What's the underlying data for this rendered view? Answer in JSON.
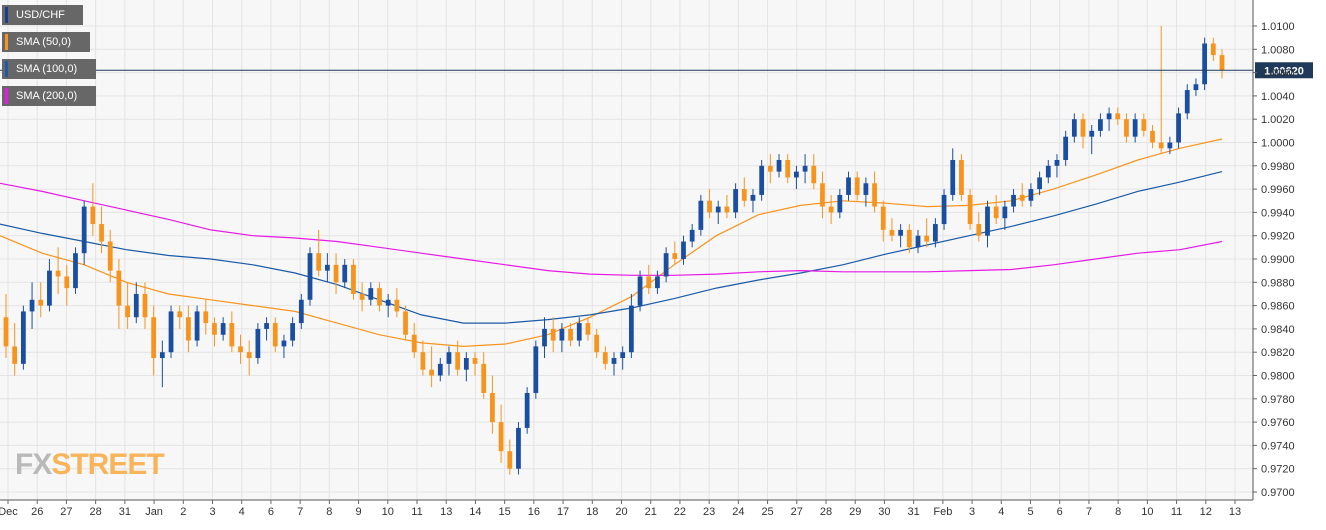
{
  "legend": [
    {
      "label": "USD/CHF",
      "color": "#1a3d8c"
    },
    {
      "label": "SMA (50,0)",
      "color": "#f7941d"
    },
    {
      "label": "SMA (100,0)",
      "color": "#1a5aa8"
    },
    {
      "label": "SMA (200,0)",
      "color": "#e619e6"
    }
  ],
  "watermark": {
    "fx": "FX",
    "street": "STREET"
  },
  "colors": {
    "up_candle": "#1a4ea0",
    "down_candle": "#f7941d",
    "sma50": "#f7941d",
    "sma100": "#1a5aa8",
    "sma200": "#e619e6",
    "grid": "#e4e4e4",
    "price_line": "#1f3a5a",
    "price_label_bg": "#1f3a5a"
  },
  "chart_data": {
    "type": "candlestick",
    "title": "",
    "symbol": "USD/CHF",
    "grid": true,
    "y_axis_side": "right",
    "ylim": [
      0.97,
      1.01
    ],
    "yticks": [
      "1.0100",
      "1.0080",
      "1.0060",
      "1.0040",
      "1.0020",
      "1.0000",
      "0.9980",
      "0.9960",
      "0.9940",
      "0.9920",
      "0.9900",
      "0.9880",
      "0.9860",
      "0.9840",
      "0.9820",
      "0.9800",
      "0.9780",
      "0.9760",
      "0.9740",
      "0.9720",
      "0.9700"
    ],
    "current_price": 1.0062,
    "current_price_label": "1.00620",
    "x_labels": [
      "Dec",
      "26",
      "27",
      "28",
      "31",
      "Jan",
      "2",
      "3",
      "4",
      "6",
      "7",
      "8",
      "9",
      "10",
      "11",
      "13",
      "14",
      "15",
      "16",
      "17",
      "18",
      "20",
      "21",
      "22",
      "23",
      "24",
      "25",
      "27",
      "28",
      "29",
      "30",
      "31",
      "Feb",
      "3",
      "4",
      "5",
      "6",
      "7",
      "8",
      "10",
      "11",
      "12",
      "13"
    ],
    "candles_ohlc": [
      [
        0.985,
        0.987,
        0.9815,
        0.9825
      ],
      [
        0.9825,
        0.9845,
        0.98,
        0.981
      ],
      [
        0.981,
        0.986,
        0.9805,
        0.9855
      ],
      [
        0.9855,
        0.988,
        0.984,
        0.9865
      ],
      [
        0.9865,
        0.988,
        0.985,
        0.986
      ],
      [
        0.986,
        0.99,
        0.9855,
        0.989
      ],
      [
        0.989,
        0.991,
        0.987,
        0.9885
      ],
      [
        0.9885,
        0.9895,
        0.986,
        0.9875
      ],
      [
        0.9875,
        0.991,
        0.987,
        0.9905
      ],
      [
        0.9905,
        0.995,
        0.9895,
        0.9945
      ],
      [
        0.9945,
        0.9965,
        0.992,
        0.993
      ],
      [
        0.993,
        0.9945,
        0.9905,
        0.9915
      ],
      [
        0.9915,
        0.9925,
        0.988,
        0.989
      ],
      [
        0.989,
        0.99,
        0.984,
        0.986
      ],
      [
        0.986,
        0.988,
        0.984,
        0.985
      ],
      [
        0.985,
        0.988,
        0.9845,
        0.987
      ],
      [
        0.987,
        0.988,
        0.984,
        0.985
      ],
      [
        0.985,
        0.986,
        0.98,
        0.9815
      ],
      [
        0.9815,
        0.983,
        0.979,
        0.982
      ],
      [
        0.982,
        0.986,
        0.9815,
        0.9855
      ],
      [
        0.9855,
        0.986,
        0.984,
        0.985
      ],
      [
        0.985,
        0.986,
        0.982,
        0.983
      ],
      [
        0.983,
        0.986,
        0.9825,
        0.9855
      ],
      [
        0.9855,
        0.9865,
        0.9835,
        0.9845
      ],
      [
        0.9845,
        0.985,
        0.9825,
        0.9835
      ],
      [
        0.9835,
        0.985,
        0.983,
        0.9845
      ],
      [
        0.9845,
        0.9855,
        0.982,
        0.9825
      ],
      [
        0.9825,
        0.9835,
        0.981,
        0.982
      ],
      [
        0.982,
        0.983,
        0.98,
        0.9815
      ],
      [
        0.9815,
        0.9845,
        0.981,
        0.984
      ],
      [
        0.984,
        0.985,
        0.983,
        0.9845
      ],
      [
        0.9845,
        0.985,
        0.982,
        0.9825
      ],
      [
        0.9825,
        0.9835,
        0.9815,
        0.983
      ],
      [
        0.983,
        0.985,
        0.9825,
        0.9845
      ],
      [
        0.9845,
        0.987,
        0.984,
        0.9865
      ],
      [
        0.9865,
        0.991,
        0.986,
        0.9905
      ],
      [
        0.9905,
        0.9925,
        0.9885,
        0.989
      ],
      [
        0.989,
        0.9905,
        0.988,
        0.9895
      ],
      [
        0.9895,
        0.9905,
        0.987,
        0.988
      ],
      [
        0.988,
        0.99,
        0.9875,
        0.9895
      ],
      [
        0.9895,
        0.99,
        0.9865,
        0.987
      ],
      [
        0.987,
        0.988,
        0.9855,
        0.9865
      ],
      [
        0.9865,
        0.988,
        0.986,
        0.9875
      ],
      [
        0.9875,
        0.988,
        0.9855,
        0.986
      ],
      [
        0.986,
        0.987,
        0.985,
        0.9865
      ],
      [
        0.9865,
        0.9875,
        0.985,
        0.9855
      ],
      [
        0.9855,
        0.986,
        0.983,
        0.9835
      ],
      [
        0.9835,
        0.9845,
        0.9815,
        0.982
      ],
      [
        0.982,
        0.983,
        0.98,
        0.9805
      ],
      [
        0.9805,
        0.9825,
        0.979,
        0.98
      ],
      [
        0.98,
        0.9815,
        0.9795,
        0.981
      ],
      [
        0.981,
        0.9825,
        0.98,
        0.982
      ],
      [
        0.982,
        0.983,
        0.98,
        0.9805
      ],
      [
        0.9805,
        0.982,
        0.9795,
        0.9815
      ],
      [
        0.9815,
        0.982,
        0.98,
        0.981
      ],
      [
        0.981,
        0.982,
        0.978,
        0.9785
      ],
      [
        0.9785,
        0.98,
        0.975,
        0.976
      ],
      [
        0.976,
        0.9775,
        0.9725,
        0.9735
      ],
      [
        0.9735,
        0.9745,
        0.9715,
        0.972
      ],
      [
        0.972,
        0.976,
        0.9715,
        0.9755
      ],
      [
        0.9755,
        0.979,
        0.975,
        0.9785
      ],
      [
        0.9785,
        0.983,
        0.978,
        0.9825
      ],
      [
        0.9825,
        0.985,
        0.9815,
        0.984
      ],
      [
        0.984,
        0.985,
        0.982,
        0.983
      ],
      [
        0.983,
        0.9845,
        0.982,
        0.984
      ],
      [
        0.984,
        0.9845,
        0.9825,
        0.983
      ],
      [
        0.983,
        0.985,
        0.9825,
        0.9845
      ],
      [
        0.9845,
        0.985,
        0.983,
        0.9835
      ],
      [
        0.9835,
        0.984,
        0.9815,
        0.982
      ],
      [
        0.982,
        0.9825,
        0.9805,
        0.981
      ],
      [
        0.981,
        0.982,
        0.98,
        0.9815
      ],
      [
        0.9815,
        0.9825,
        0.9805,
        0.982
      ],
      [
        0.982,
        0.987,
        0.9815,
        0.986
      ],
      [
        0.986,
        0.989,
        0.9855,
        0.9885
      ],
      [
        0.9885,
        0.9895,
        0.987,
        0.9875
      ],
      [
        0.9875,
        0.989,
        0.987,
        0.9885
      ],
      [
        0.9885,
        0.991,
        0.988,
        0.9905
      ],
      [
        0.9905,
        0.9915,
        0.9895,
        0.99
      ],
      [
        0.99,
        0.992,
        0.9895,
        0.9915
      ],
      [
        0.9915,
        0.993,
        0.991,
        0.9925
      ],
      [
        0.9925,
        0.9955,
        0.992,
        0.995
      ],
      [
        0.995,
        0.996,
        0.9935,
        0.994
      ],
      [
        0.994,
        0.995,
        0.993,
        0.9945
      ],
      [
        0.9945,
        0.9955,
        0.9935,
        0.994
      ],
      [
        0.994,
        0.9965,
        0.9935,
        0.996
      ],
      [
        0.996,
        0.997,
        0.9945,
        0.995
      ],
      [
        0.995,
        0.996,
        0.994,
        0.9955
      ],
      [
        0.9955,
        0.9985,
        0.995,
        0.998
      ],
      [
        0.998,
        0.999,
        0.9965,
        0.9975
      ],
      [
        0.9975,
        0.999,
        0.997,
        0.9985
      ],
      [
        0.9985,
        0.999,
        0.9965,
        0.997
      ],
      [
        0.997,
        0.998,
        0.996,
        0.9975
      ],
      [
        0.9975,
        0.999,
        0.9965,
        0.998
      ],
      [
        0.998,
        0.999,
        0.996,
        0.9965
      ],
      [
        0.9965,
        0.9975,
        0.9935,
        0.9945
      ],
      [
        0.9945,
        0.9955,
        0.993,
        0.994
      ],
      [
        0.994,
        0.996,
        0.9935,
        0.9955
      ],
      [
        0.9955,
        0.9975,
        0.995,
        0.997
      ],
      [
        0.997,
        0.9975,
        0.995,
        0.9955
      ],
      [
        0.9955,
        0.997,
        0.9945,
        0.9965
      ],
      [
        0.9965,
        0.9975,
        0.994,
        0.9945
      ],
      [
        0.9945,
        0.995,
        0.9915,
        0.9925
      ],
      [
        0.9925,
        0.9935,
        0.9915,
        0.992
      ],
      [
        0.992,
        0.993,
        0.991,
        0.9925
      ],
      [
        0.9925,
        0.993,
        0.9905,
        0.991
      ],
      [
        0.991,
        0.9925,
        0.9905,
        0.992
      ],
      [
        0.992,
        0.9935,
        0.991,
        0.9915
      ],
      [
        0.9915,
        0.9935,
        0.991,
        0.993
      ],
      [
        0.993,
        0.996,
        0.9925,
        0.9955
      ],
      [
        0.9955,
        0.9995,
        0.995,
        0.9985
      ],
      [
        0.9985,
        0.999,
        0.995,
        0.9955
      ],
      [
        0.9955,
        0.996,
        0.9925,
        0.993
      ],
      [
        0.993,
        0.994,
        0.9915,
        0.992
      ],
      [
        0.992,
        0.995,
        0.991,
        0.9945
      ],
      [
        0.9945,
        0.9955,
        0.993,
        0.9935
      ],
      [
        0.9935,
        0.995,
        0.9925,
        0.9945
      ],
      [
        0.9945,
        0.996,
        0.994,
        0.9955
      ],
      [
        0.9955,
        0.9965,
        0.9945,
        0.995
      ],
      [
        0.995,
        0.9965,
        0.9945,
        0.996
      ],
      [
        0.996,
        0.9975,
        0.9955,
        0.997
      ],
      [
        0.997,
        0.9985,
        0.9965,
        0.998
      ],
      [
        0.998,
        0.999,
        0.997,
        0.9985
      ],
      [
        0.9985,
        1.001,
        0.998,
        1.0005
      ],
      [
        1.0005,
        1.0025,
        1.0,
        1.002
      ],
      [
        1.002,
        1.0025,
        0.9995,
        1.0005
      ],
      [
        1.0005,
        1.0015,
        0.999,
        1.001
      ],
      [
        1.001,
        1.0025,
        1.0005,
        1.002
      ],
      [
        1.002,
        1.003,
        1.001,
        1.0025
      ],
      [
        1.0025,
        1.003,
        1.0015,
        1.002
      ],
      [
        1.002,
        1.0025,
        1.0,
        1.0005
      ],
      [
        1.0005,
        1.0025,
        1.0,
        1.002
      ],
      [
        1.002,
        1.0025,
        1.0005,
        1.001
      ],
      [
        1.001,
        1.0015,
        0.9995,
        1.0
      ],
      [
        1.0,
        1.01,
        0.999,
        0.9995
      ],
      [
        0.9995,
        1.0005,
        0.999,
        1.0
      ],
      [
        1.0,
        1.003,
        0.9995,
        1.0025
      ],
      [
        1.0025,
        1.005,
        1.002,
        1.0045
      ],
      [
        1.0045,
        1.0055,
        1.004,
        1.005
      ],
      [
        1.005,
        1.009,
        1.0045,
        1.0085
      ],
      [
        1.0085,
        1.009,
        1.007,
        1.0075
      ],
      [
        1.0075,
        1.008,
        1.0055,
        1.0062
      ]
    ],
    "series": [
      {
        "name": "SMA (50,0)",
        "color": "#f7941d",
        "values": [
          0.992,
          0.9905,
          0.9895,
          0.988,
          0.987,
          0.9865,
          0.986,
          0.9855,
          0.9845,
          0.9835,
          0.9828,
          0.9825,
          0.9827,
          0.9835,
          0.985,
          0.9868,
          0.9895,
          0.992,
          0.9938,
          0.9946,
          0.995,
          0.9948,
          0.9945,
          0.9946,
          0.995,
          0.996,
          0.9972,
          0.9985,
          0.9995,
          1.0003
        ]
      },
      {
        "name": "SMA (100,0)",
        "color": "#1a5aa8",
        "values": [
          0.993,
          0.9922,
          0.9915,
          0.9908,
          0.9903,
          0.99,
          0.9895,
          0.9888,
          0.9878,
          0.9865,
          0.9852,
          0.9845,
          0.9845,
          0.9848,
          0.9852,
          0.9858,
          0.9866,
          0.9875,
          0.9882,
          0.9888,
          0.9895,
          0.9904,
          0.9912,
          0.992,
          0.9928,
          0.9937,
          0.9947,
          0.9958,
          0.9966,
          0.9975
        ]
      },
      {
        "name": "SMA (200,0)",
        "color": "#e619e6",
        "values": [
          0.9965,
          0.9958,
          0.995,
          0.9942,
          0.9934,
          0.9925,
          0.992,
          0.9918,
          0.9915,
          0.991,
          0.9905,
          0.99,
          0.9895,
          0.989,
          0.9887,
          0.9886,
          0.9886,
          0.9887,
          0.9889,
          0.989,
          0.9889,
          0.9889,
          0.9889,
          0.989,
          0.9891,
          0.9895,
          0.99,
          0.9905,
          0.9908,
          0.9915
        ]
      }
    ]
  }
}
